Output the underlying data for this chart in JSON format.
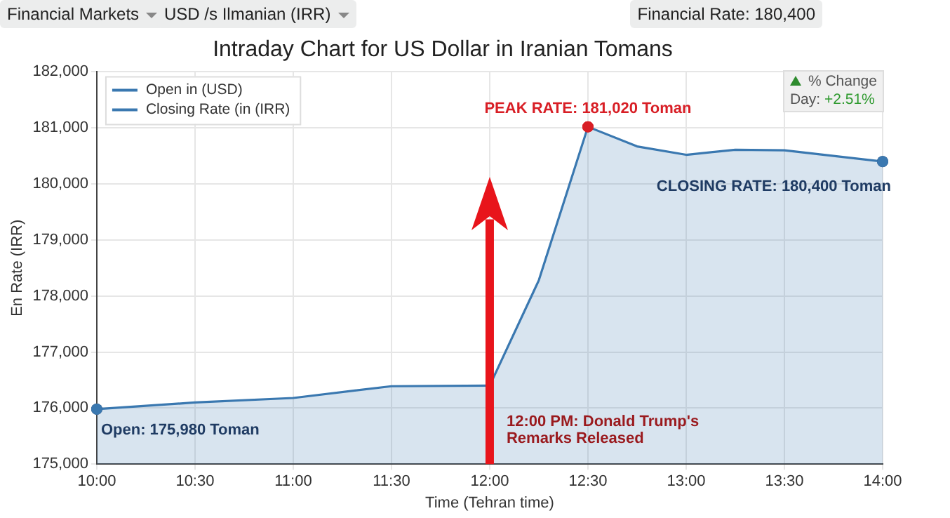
{
  "chart_data": {
    "type": "area",
    "title": "Intraday Chart for US Dollar in Iranian Tomans",
    "xlabel": "Time (Tehran time)",
    "ylabel": "En Rate (IRR)",
    "x": [
      10,
      10.5,
      11,
      11.5,
      12,
      12.25,
      12.5,
      12.75,
      13,
      13.25,
      13.5,
      14
    ],
    "series": [
      {
        "name": "Open in (USD)",
        "color": "#3a78b0",
        "values": [
          175980,
          176100,
          176180,
          176390,
          176400,
          null,
          null,
          null,
          null,
          null,
          null,
          null
        ]
      },
      {
        "name": "Closing Rate (in (IRR)",
        "color": "#3a78b0",
        "values": [
          null,
          null,
          null,
          null,
          176400,
          178280,
          181020,
          180670,
          180520,
          180610,
          180600,
          180400
        ]
      }
    ],
    "xlim": [
      10,
      14
    ],
    "xticks": [
      {
        "value": 10,
        "label": "10:00"
      },
      {
        "value": 10.5,
        "label": "10:30"
      },
      {
        "value": 11,
        "label": "11:00"
      },
      {
        "value": 11.5,
        "label": "11:30"
      },
      {
        "value": 12,
        "label": "12:00"
      },
      {
        "value": 12.5,
        "label": "12:30"
      },
      {
        "value": 13,
        "label": "13:00"
      },
      {
        "value": 13.5,
        "label": "13:30"
      },
      {
        "value": 14,
        "label": "14:00"
      }
    ],
    "ylim": [
      175000,
      182000
    ],
    "yticks": [
      {
        "value": 175000,
        "label": "175,000"
      },
      {
        "value": 176000,
        "label": "176,000"
      },
      {
        "value": 177000,
        "label": "177,000"
      },
      {
        "value": 178000,
        "label": "178,000"
      },
      {
        "value": 179000,
        "label": "179,000"
      },
      {
        "value": 180000,
        "label": "180,000"
      },
      {
        "value": 181000,
        "label": "181,000"
      },
      {
        "value": 182000,
        "label": "182,000"
      }
    ],
    "grid": true,
    "legend": "top left",
    "marker": "none",
    "line_style": "solid",
    "ref_lines": [
      {
        "axis": "x",
        "value": 12,
        "label": "12:00 PM: Donald Trump's Remarks Released",
        "color": "#e8141b"
      }
    ],
    "annotations": [
      {
        "text": "Open: 175,980 Toman",
        "x": 10,
        "y": 175980
      },
      {
        "text": "PEAK RATE: 181,020 Toman",
        "x": 12.5,
        "y": 181020
      },
      {
        "text": "CLOSING RATE: 180,400 Toman",
        "x": 14,
        "y": 180400
      },
      "Financial Markets",
      "USD /s Ilmanian (IRR)",
      "Financial Rate: 180,400",
      "% Change",
      "Day: +2.51%"
    ]
  }
}
